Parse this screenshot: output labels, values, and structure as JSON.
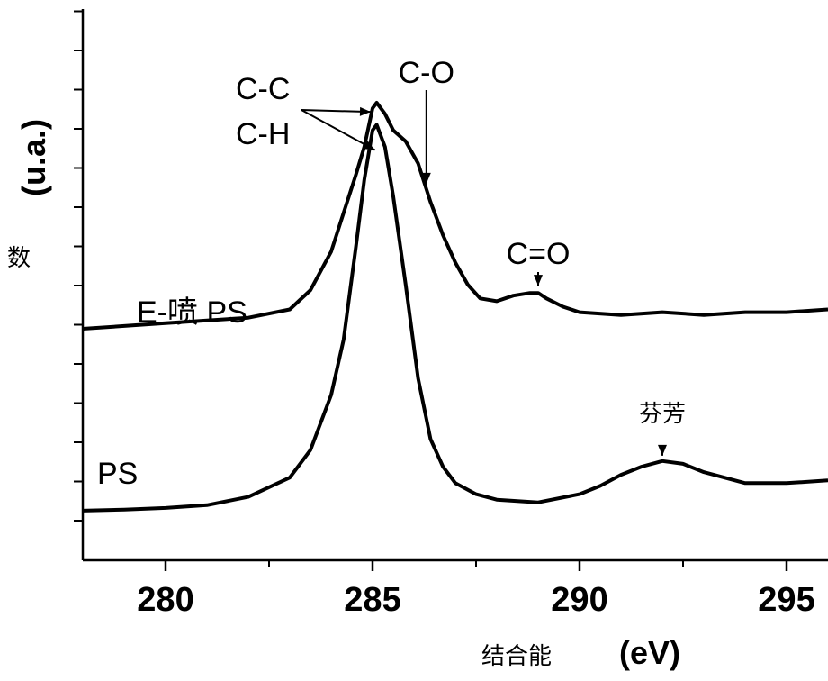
{
  "chart_data": {
    "type": "line",
    "title": "",
    "xlabel": "结合能",
    "xlabel_unit": "(eV)",
    "ylabel": "数",
    "ylabel_unit": "(u.a.)",
    "xlim": [
      278,
      296
    ],
    "x_ticks": [
      280,
      285,
      290,
      295
    ],
    "x_tick_labels": [
      "280",
      "285",
      "290",
      "295"
    ],
    "grid": false,
    "legend": "none",
    "series": [
      {
        "name": "E-喷 PS",
        "x": [
          278,
          279,
          280,
          281,
          282,
          283,
          283.5,
          284,
          284.3,
          284.6,
          284.8,
          285,
          285.1,
          285.3,
          285.5,
          285.8,
          286.1,
          286.4,
          286.7,
          287,
          287.3,
          287.6,
          288,
          288.4,
          288.8,
          289,
          289.2,
          289.6,
          290,
          291,
          292,
          293,
          294,
          295,
          296
        ],
        "y": [
          0.42,
          0.425,
          0.43,
          0.435,
          0.44,
          0.455,
          0.49,
          0.56,
          0.63,
          0.7,
          0.75,
          0.82,
          0.83,
          0.81,
          0.78,
          0.76,
          0.72,
          0.65,
          0.59,
          0.54,
          0.5,
          0.475,
          0.47,
          0.48,
          0.485,
          0.485,
          0.475,
          0.46,
          0.45,
          0.445,
          0.45,
          0.445,
          0.45,
          0.45,
          0.455
        ]
      },
      {
        "name": "PS",
        "x": [
          278,
          279,
          280,
          281,
          282,
          283,
          283.5,
          284,
          284.3,
          284.6,
          284.8,
          285,
          285.1,
          285.3,
          285.5,
          285.8,
          286.1,
          286.4,
          286.7,
          287,
          287.5,
          288,
          289,
          290,
          290.5,
          291,
          291.5,
          292,
          292.5,
          293,
          294,
          295,
          296
        ],
        "y": [
          0.09,
          0.092,
          0.095,
          0.1,
          0.115,
          0.15,
          0.2,
          0.3,
          0.4,
          0.57,
          0.69,
          0.78,
          0.79,
          0.75,
          0.66,
          0.5,
          0.33,
          0.22,
          0.17,
          0.14,
          0.12,
          0.11,
          0.105,
          0.12,
          0.135,
          0.155,
          0.17,
          0.18,
          0.175,
          0.16,
          0.14,
          0.14,
          0.145
        ]
      }
    ],
    "annotations": [
      {
        "text": "C-C",
        "x": 285,
        "series": 0
      },
      {
        "text": "C-H",
        "x": 285.1,
        "series": 1
      },
      {
        "text": "C-O",
        "x": 286.3,
        "series": 0
      },
      {
        "text": "C=O",
        "x": 289,
        "series": 0
      },
      {
        "text": "芬芳",
        "x": 292,
        "series": 1
      }
    ]
  },
  "labels": {
    "series_top": "E-喷  PS",
    "series_bottom": "PS"
  }
}
